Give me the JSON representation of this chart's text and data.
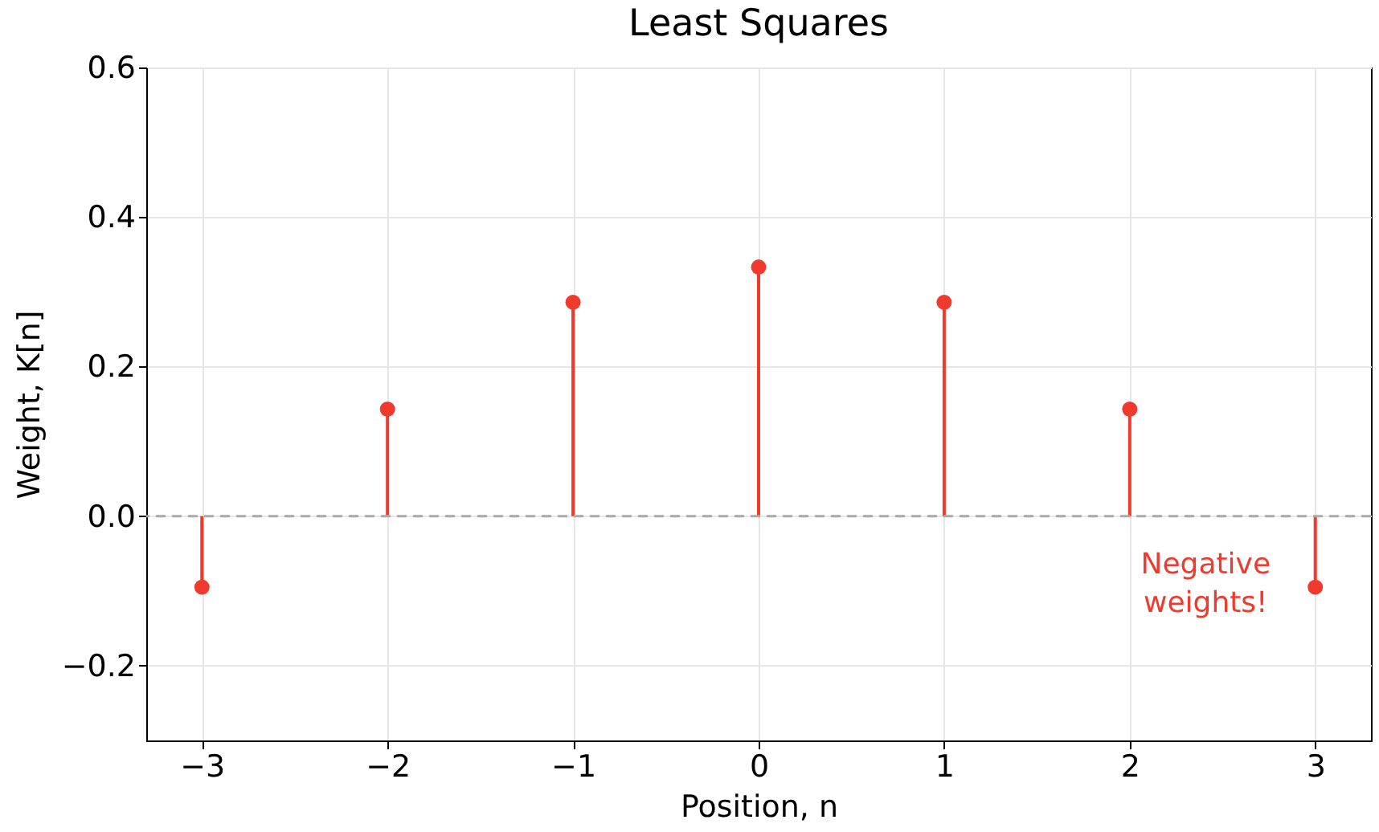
{
  "chart_data": {
    "type": "lollipop",
    "title": "Least Squares",
    "xlabel": "Position, n",
    "ylabel": "Weight, K[n]",
    "x": [
      -3,
      -2,
      -1,
      0,
      1,
      2,
      3
    ],
    "series": [
      {
        "color": "#f03a2e",
        "values": [
          -0.095,
          0.143,
          0.286,
          0.333,
          0.286,
          0.143,
          -0.095
        ]
      }
    ],
    "xlim": [
      -3.3,
      3.3
    ],
    "xticks": [
      {
        "value": -3,
        "label": "−3"
      },
      {
        "value": -2,
        "label": "−2"
      },
      {
        "value": -1,
        "label": "−1"
      },
      0,
      1,
      2,
      3
    ],
    "ylim": [
      -0.3,
      0.6
    ],
    "yticks": [
      {
        "value": -0.2,
        "label": "−0.2"
      },
      {
        "value": 0,
        "label": "0.0"
      },
      0.2,
      0.4,
      0.6
    ],
    "ref_lines": [
      {
        "axis": "y",
        "value": 0,
        "color": "#aaaaaa",
        "line_style": "dashed"
      }
    ],
    "annotations": [
      "Negative weights!"
    ],
    "grid": true,
    "marker": "circle"
  }
}
